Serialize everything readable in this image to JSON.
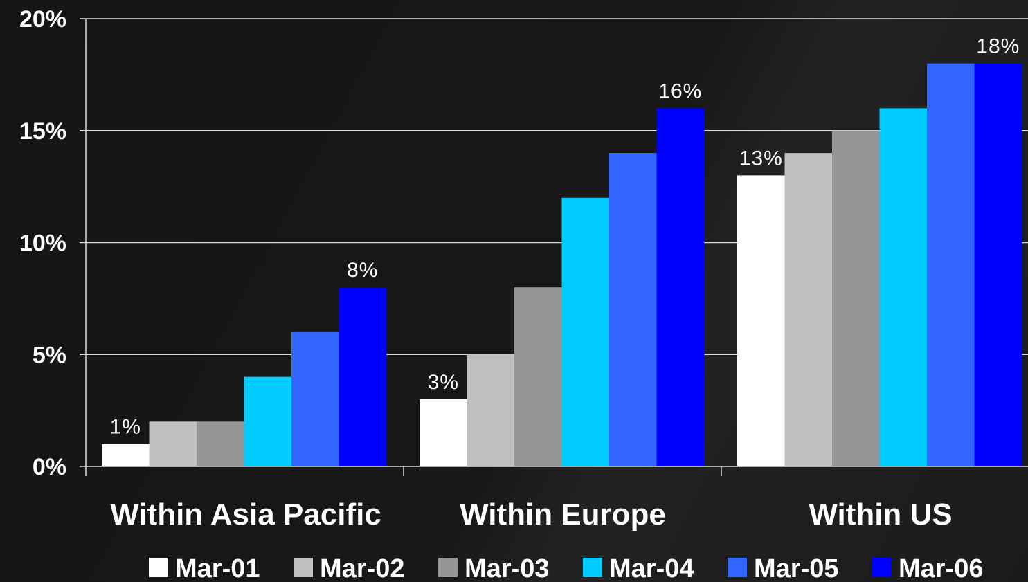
{
  "chart_data": {
    "type": "bar",
    "categories": [
      "Within Asia Pacific",
      "Within Europe",
      "Within US"
    ],
    "series": [
      {
        "name": "Mar-01",
        "color": "#ffffff",
        "values": [
          1,
          3,
          13
        ]
      },
      {
        "name": "Mar-02",
        "color": "#c0c0c0",
        "values": [
          2,
          5,
          14
        ]
      },
      {
        "name": "Mar-03",
        "color": "#969696",
        "values": [
          2,
          8,
          15
        ]
      },
      {
        "name": "Mar-04",
        "color": "#00ccff",
        "values": [
          4,
          12,
          16
        ]
      },
      {
        "name": "Mar-05",
        "color": "#3366ff",
        "values": [
          6,
          14,
          18
        ]
      },
      {
        "name": "Mar-06",
        "color": "#0000ff",
        "values": [
          8,
          16,
          18
        ]
      }
    ],
    "data_labels": [
      {
        "category": 0,
        "series": 0,
        "text": "1%"
      },
      {
        "category": 0,
        "series": 5,
        "text": "8%"
      },
      {
        "category": 1,
        "series": 0,
        "text": "3%"
      },
      {
        "category": 1,
        "series": 5,
        "text": "16%"
      },
      {
        "category": 2,
        "series": 0,
        "text": "13%"
      },
      {
        "category": 2,
        "series": 5,
        "text": "18%"
      }
    ],
    "yticks": [
      "0%",
      "5%",
      "10%",
      "15%",
      "20%"
    ],
    "ytick_values": [
      0,
      5,
      10,
      15,
      20
    ],
    "ylim": [
      0,
      20
    ],
    "grid": true,
    "legend_position": "bottom",
    "title": "",
    "xlabel": "",
    "ylabel": ""
  }
}
